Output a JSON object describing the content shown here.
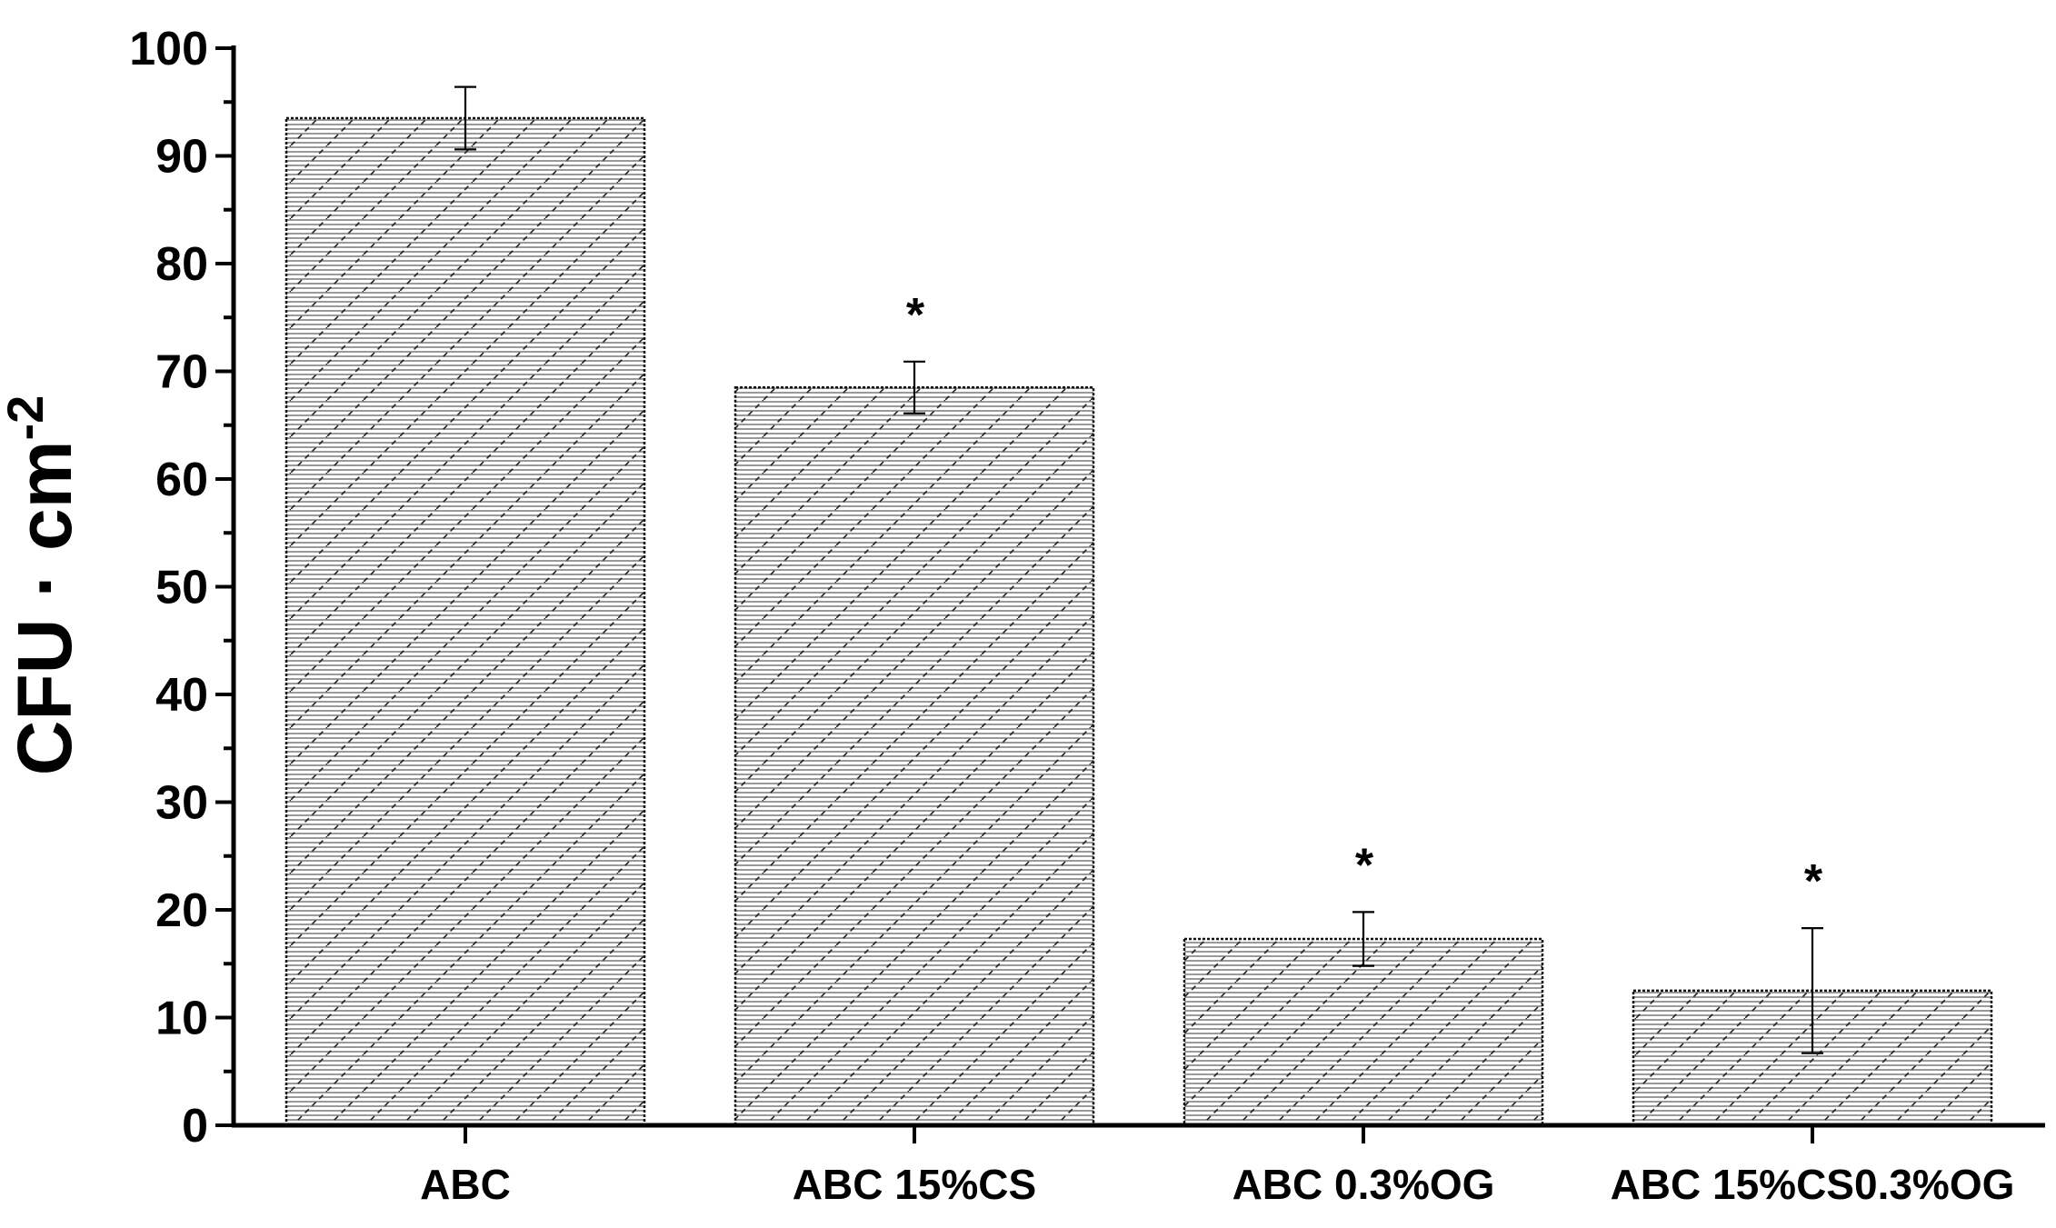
{
  "chart_data": {
    "type": "bar",
    "title": "",
    "xlabel": "",
    "ylabel_main": "CFU · cm",
    "ylabel_sup": "-2",
    "categories": [
      "ABC",
      "ABC 15%CS",
      "ABC 0.3%OG",
      "ABC 15%CS0.3%OG"
    ],
    "values": [
      93.5,
      68.5,
      17.3,
      12.5
    ],
    "errors": [
      2.9,
      2.4,
      2.5,
      5.8
    ],
    "significance": [
      "",
      "*",
      "*",
      "*"
    ],
    "ylim": [
      0,
      100
    ],
    "yticks": [
      0,
      10,
      20,
      30,
      40,
      50,
      60,
      70,
      80,
      90,
      100
    ],
    "ytick_labels": [
      "0",
      "10",
      "20",
      "30",
      "40",
      "50",
      "60",
      "70",
      "80",
      "90",
      "100"
    ],
    "grid": false,
    "legend": "none",
    "bar_fill": "#cfcfcf",
    "bar_pattern": "hatched diagonal + horizontal lines"
  }
}
